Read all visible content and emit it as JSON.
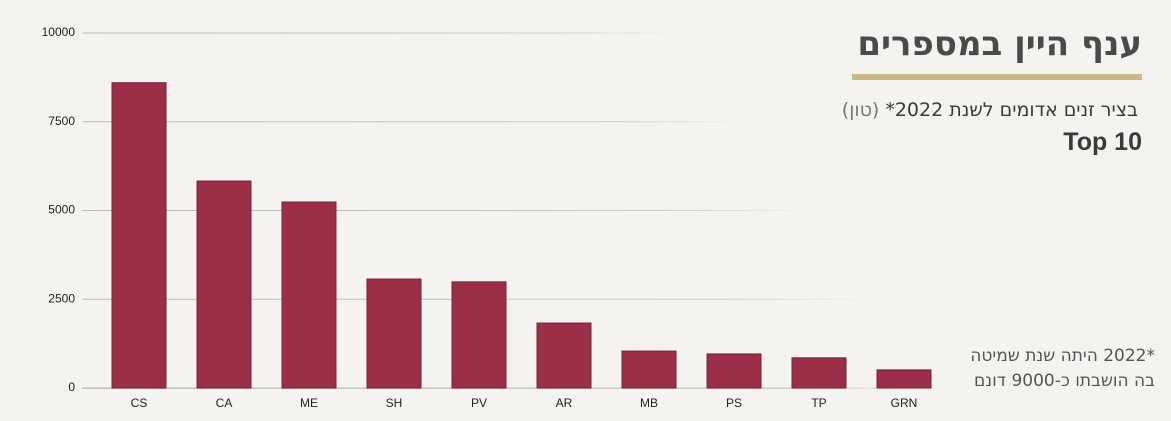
{
  "chart_data": {
    "type": "bar",
    "title": "ענף היין במספרים",
    "subtitle": "בציר זנים אדומים לשנת 2022*",
    "unit": "(טון)",
    "heading": "Top 10",
    "notes": [
      "*2022 היתה שנת שמיטה",
      "בה הושבתו כ-9000 דונם"
    ],
    "categories": [
      "CS",
      "CA",
      "ME",
      "SH",
      "PV",
      "AR",
      "MB",
      "PS",
      "TP",
      "GRN"
    ],
    "values": [
      8600,
      5830,
      5240,
      3070,
      2990,
      1830,
      1040,
      960,
      850,
      510
    ],
    "color": "#9b2f48",
    "ylim": [
      0,
      10000
    ],
    "yticks": [
      0,
      2500,
      5000,
      7500,
      10000
    ],
    "grid": true
  }
}
